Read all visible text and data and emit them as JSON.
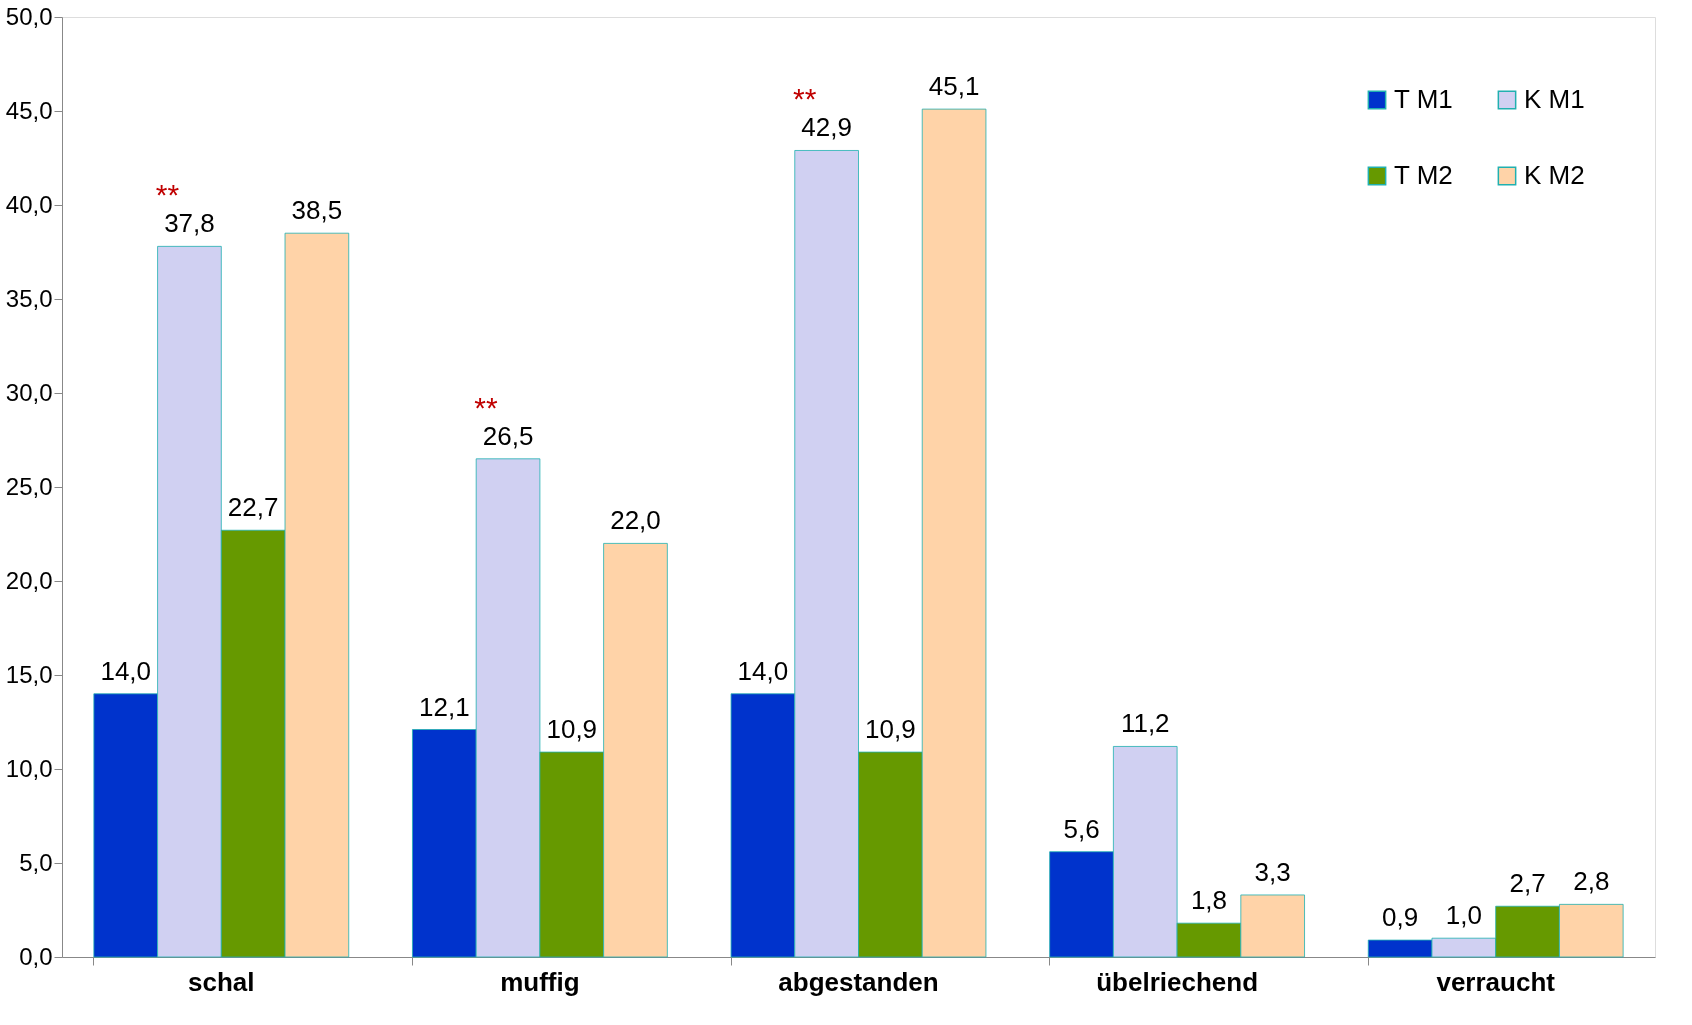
{
  "chart_data": {
    "type": "bar",
    "categories": [
      "schal",
      "muffig",
      "abgestanden",
      "übelriechend",
      "verraucht"
    ],
    "series": [
      {
        "name": "T M1",
        "color": "#0033cc",
        "values": [
          14.0,
          12.1,
          14.0,
          5.6,
          0.9
        ],
        "value_labels": [
          "14,0",
          "12,1",
          "14,0",
          "5,6",
          "0,9"
        ]
      },
      {
        "name": "K M1",
        "color": "#d0d0f2",
        "values": [
          37.8,
          26.5,
          42.9,
          11.2,
          1.0
        ],
        "value_labels": [
          "37,8",
          "26,5",
          "42,9",
          "11,2",
          "1,0"
        ]
      },
      {
        "name": "T M2",
        "color": "#669900",
        "values": [
          22.7,
          10.9,
          10.9,
          1.8,
          2.7
        ],
        "value_labels": [
          "22,7",
          "10,9",
          "10,9",
          "1,8",
          "2,7"
        ]
      },
      {
        "name": "K M2",
        "color": "#ffd3a8",
        "values": [
          38.5,
          22.0,
          45.1,
          3.3,
          2.8
        ],
        "value_labels": [
          "38,5",
          "22,0",
          "45,1",
          "3,3",
          "2,8"
        ]
      }
    ],
    "ylim": [
      0,
      50
    ],
    "yticks": [
      {
        "value": 0,
        "label": "0,0"
      },
      {
        "value": 5,
        "label": "5,0"
      },
      {
        "value": 10,
        "label": "10,0"
      },
      {
        "value": 15,
        "label": "15,0"
      },
      {
        "value": 20,
        "label": "20,0"
      },
      {
        "value": 25,
        "label": "25,0"
      },
      {
        "value": 30,
        "label": "30,0"
      },
      {
        "value": 35,
        "label": "35,0"
      },
      {
        "value": 40,
        "label": "40,0"
      },
      {
        "value": 45,
        "label": "45,0"
      },
      {
        "value": 50,
        "label": "50,0"
      }
    ],
    "grid": false,
    "legend": "top right",
    "annotations": [
      "**",
      "**",
      "**"
    ]
  }
}
